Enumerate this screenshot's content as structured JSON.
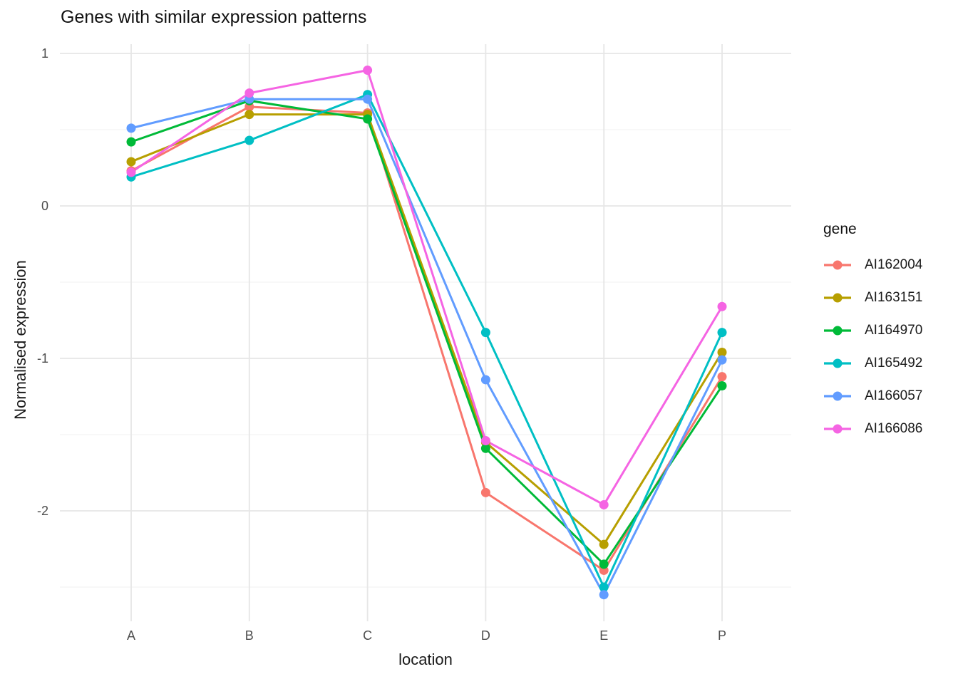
{
  "chart_data": {
    "type": "line",
    "title": "Genes with similar expression patterns",
    "xlabel": "location",
    "ylabel": "Normalised expression",
    "legend_title": "gene",
    "legend_position": "right",
    "grid": true,
    "categories": [
      "A",
      "B",
      "C",
      "D",
      "E",
      "P"
    ],
    "y_axis": {
      "major_ticks": [
        {
          "value": 1,
          "label": "1"
        },
        {
          "value": 0,
          "label": "0"
        },
        {
          "value": -1,
          "label": "-1"
        },
        {
          "value": -2,
          "label": "-2"
        }
      ],
      "minor_ticks": [
        0.5,
        -0.5,
        -1.5,
        -2.5
      ],
      "range": [
        -2.72,
        1.06
      ]
    },
    "series": [
      {
        "name": "AI162004",
        "color": "#F8766D",
        "values": [
          0.23,
          0.65,
          0.61,
          -1.88,
          -2.39,
          -1.12
        ]
      },
      {
        "name": "AI163151",
        "color": "#B79F00",
        "values": [
          0.29,
          0.6,
          0.6,
          -1.55,
          -2.22,
          -0.96
        ]
      },
      {
        "name": "AI164970",
        "color": "#00BA38",
        "values": [
          0.42,
          0.69,
          0.57,
          -1.59,
          -2.35,
          -1.18
        ]
      },
      {
        "name": "AI165492",
        "color": "#00BFC4",
        "values": [
          0.19,
          0.43,
          0.73,
          -0.83,
          -2.5,
          -0.83
        ]
      },
      {
        "name": "AI166057",
        "color": "#619CFF",
        "values": [
          0.51,
          0.7,
          0.7,
          -1.14,
          -2.55,
          -1.01
        ]
      },
      {
        "name": "AI166086",
        "color": "#F564E3",
        "values": [
          0.22,
          0.74,
          0.89,
          -1.54,
          -1.96,
          -0.66
        ]
      }
    ],
    "style_colors": {
      "grid_major": "#E6E6E6",
      "grid_minor": "#F0F0F0",
      "tick_label": "#4d4d4d"
    }
  }
}
